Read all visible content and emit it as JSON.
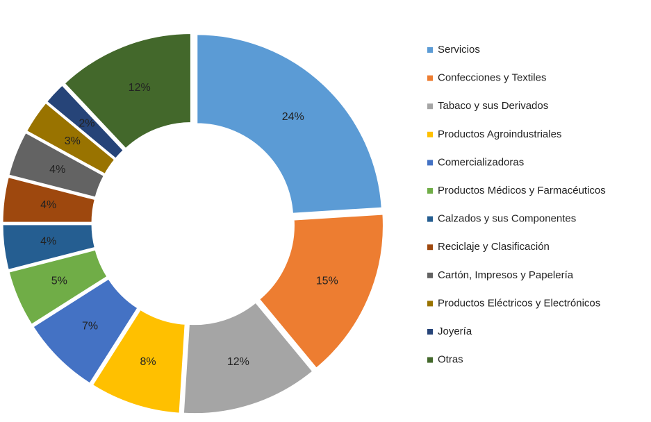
{
  "chart_data": {
    "type": "donut",
    "categories": [
      "Servicios",
      "Confecciones y Textiles",
      "Tabaco y sus Derivados",
      "Productos Agroindustriales",
      "Comercializadoras",
      "Productos Médicos y Farmacéuticos",
      "Calzados y sus Componentes",
      "Reciclaje y Clasificación",
      "Cartón, Impresos y Papelería",
      "Productos Eléctricos y Electrónicos",
      "Joyería",
      "Otras"
    ],
    "values": [
      24,
      15,
      12,
      8,
      7,
      5,
      4,
      4,
      4,
      3,
      2,
      12
    ],
    "value_labels": [
      "24%",
      "15%",
      "12%",
      "8%",
      "7%",
      "5%",
      "4%",
      "4%",
      "4%",
      "3%",
      "2%",
      "12%"
    ],
    "colors": [
      "#5b9bd5",
      "#ed7d31",
      "#a5a5a5",
      "#ffc000",
      "#4472c4",
      "#70ad47",
      "#255e91",
      "#9e480e",
      "#636363",
      "#997300",
      "#264478",
      "#43682b"
    ],
    "legend": "right"
  }
}
